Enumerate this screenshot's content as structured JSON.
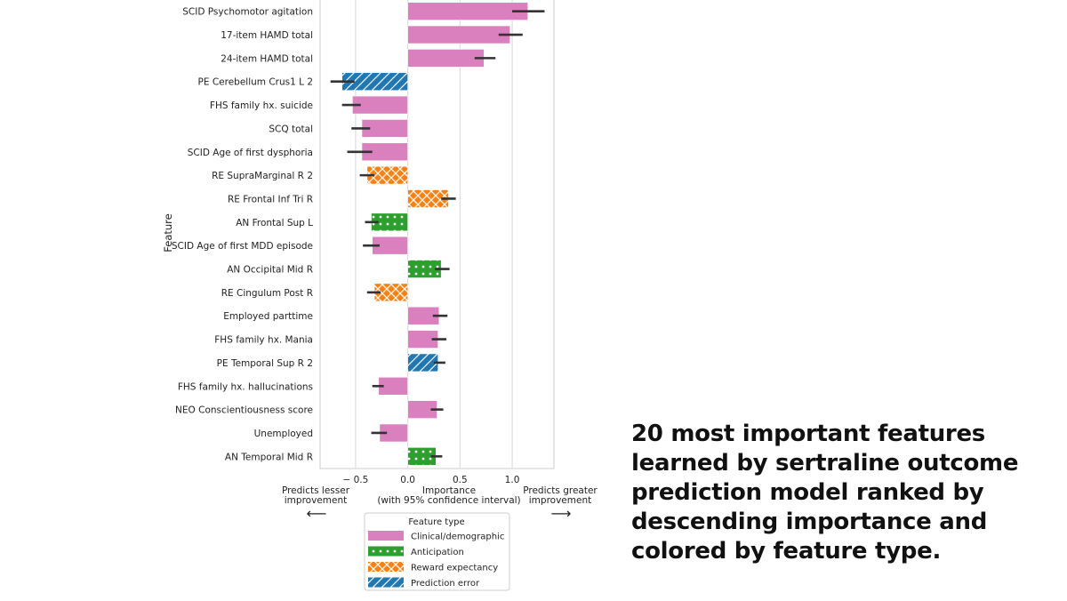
{
  "chart_data": {
    "type": "bar",
    "orientation": "horizontal",
    "ylabel": "Feature",
    "xlabel": "Importance\n(with 95% confidence interval)",
    "xlabel_left": "Predicts lesser\nimprovement",
    "xlabel_right": "Predicts greater\nimprovement",
    "xlim": [
      -0.84,
      1.4
    ],
    "xticks": [
      -0.5,
      0.0,
      0.5,
      1.0
    ],
    "xtick_labels": [
      "− 0.5",
      "0.0",
      "0.5",
      "1.0"
    ],
    "grid": "vertical",
    "legend": {
      "title": "Feature type",
      "placement": "bottom",
      "entries": [
        {
          "name": "Clinical/demographic",
          "color": "#da80bf",
          "pattern": "none"
        },
        {
          "name": "Anticipation",
          "color": "#2ca02c",
          "pattern": "dots"
        },
        {
          "name": "Reward expectancy",
          "color": "#ff7f0e",
          "pattern": "crosshatch"
        },
        {
          "name": "Prediction error",
          "color": "#1f77b4",
          "pattern": "diagonal"
        }
      ]
    },
    "bars": [
      {
        "feature": "SCID Psychomotor agitation",
        "type": 0,
        "value": 1.15,
        "ci": [
          1.0,
          1.31
        ]
      },
      {
        "feature": "17-item HAMD total",
        "type": 0,
        "value": 0.98,
        "ci": [
          0.87,
          1.1
        ]
      },
      {
        "feature": "24-item HAMD total",
        "type": 0,
        "value": 0.73,
        "ci": [
          0.64,
          0.84
        ]
      },
      {
        "feature": "PE Cerebellum Crus1 L 2",
        "type": 3,
        "value": -0.63,
        "ci": [
          -0.74,
          -0.51
        ]
      },
      {
        "feature": "FHS family hx. suicide",
        "type": 0,
        "value": -0.53,
        "ci": [
          -0.63,
          -0.45
        ]
      },
      {
        "feature": "SCQ total",
        "type": 0,
        "value": -0.44,
        "ci": [
          -0.54,
          -0.36
        ]
      },
      {
        "feature": "SCID Age of first dysphoria",
        "type": 0,
        "value": -0.44,
        "ci": [
          -0.58,
          -0.34
        ]
      },
      {
        "feature": "RE SupraMarginal R 2",
        "type": 2,
        "value": -0.39,
        "ci": [
          -0.46,
          -0.32
        ]
      },
      {
        "feature": "RE Frontal Inf Tri R",
        "type": 2,
        "value": 0.39,
        "ci": [
          0.32,
          0.46
        ]
      },
      {
        "feature": "AN Frontal Sup L",
        "type": 1,
        "value": -0.35,
        "ci": [
          -0.41,
          -0.28
        ]
      },
      {
        "feature": "SCID Age of first MDD episode",
        "type": 0,
        "value": -0.34,
        "ci": [
          -0.43,
          -0.27
        ]
      },
      {
        "feature": "AN Occipital Mid R",
        "type": 1,
        "value": 0.32,
        "ci": [
          0.26,
          0.4
        ]
      },
      {
        "feature": "RE Cingulum Post R",
        "type": 2,
        "value": -0.32,
        "ci": [
          -0.39,
          -0.26
        ]
      },
      {
        "feature": "Employed parttime",
        "type": 0,
        "value": 0.3,
        "ci": [
          0.24,
          0.38
        ]
      },
      {
        "feature": "FHS family hx. Mania",
        "type": 0,
        "value": 0.29,
        "ci": [
          0.23,
          0.37
        ]
      },
      {
        "feature": "PE Temporal Sup R 2",
        "type": 3,
        "value": 0.29,
        "ci": [
          0.25,
          0.36
        ]
      },
      {
        "feature": "FHS family hx. hallucinations",
        "type": 0,
        "value": -0.28,
        "ci": [
          -0.34,
          -0.23
        ]
      },
      {
        "feature": "NEO Conscientiousness score",
        "type": 0,
        "value": 0.28,
        "ci": [
          0.22,
          0.34
        ]
      },
      {
        "feature": "Unemployed",
        "type": 0,
        "value": -0.27,
        "ci": [
          -0.35,
          -0.2
        ]
      },
      {
        "feature": "AN Temporal Mid R",
        "type": 1,
        "value": 0.27,
        "ci": [
          0.22,
          0.33
        ]
      }
    ]
  },
  "caption": "20 most important features learned by sertraline outcome prediction model ranked by descending importance and colored by feature type."
}
